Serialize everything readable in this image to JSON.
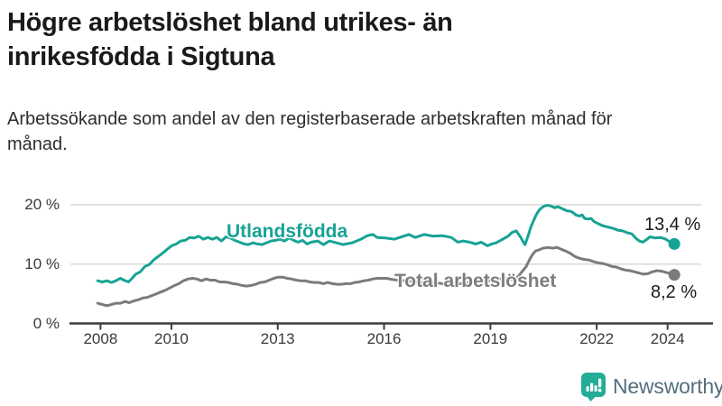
{
  "header": {
    "title": "Högre arbetslöshet bland utrikes- än inrikesfödda i Sigtuna",
    "subtitle": "Arbetssökande som andel av den registerbaserade arbetskraften månad för månad."
  },
  "chart_data": {
    "type": "line",
    "unit": "%",
    "grid": "horizontal-only",
    "legend_position": "inline-labels",
    "xlim": [
      2007.15,
      2024.95
    ],
    "ylim": [
      0,
      20
    ],
    "x_ticks": [
      2008,
      2010,
      2013,
      2016,
      2019,
      2022,
      2024
    ],
    "y_ticks": [
      {
        "value": 0,
        "label": "0 %"
      },
      {
        "value": 10,
        "label": "10 %"
      },
      {
        "value": 20,
        "label": "20 %"
      }
    ],
    "series": [
      {
        "id": "utlandsfodda",
        "name": "Utlandsfödda",
        "color": "#17a394",
        "end_label": "13,4 %",
        "end_value": 13.4,
        "points": [
          [
            2007.92,
            7.2
          ],
          [
            2008.05,
            7.0
          ],
          [
            2008.18,
            7.2
          ],
          [
            2008.31,
            6.9
          ],
          [
            2008.43,
            7.2
          ],
          [
            2008.56,
            7.6
          ],
          [
            2008.66,
            7.3
          ],
          [
            2008.79,
            7.0
          ],
          [
            2008.89,
            7.6
          ],
          [
            2008.99,
            8.3
          ],
          [
            2009.12,
            8.7
          ],
          [
            2009.25,
            9.6
          ],
          [
            2009.37,
            9.9
          ],
          [
            2009.5,
            10.7
          ],
          [
            2009.63,
            11.3
          ],
          [
            2009.76,
            11.9
          ],
          [
            2009.88,
            12.5
          ],
          [
            2010.01,
            13.1
          ],
          [
            2010.14,
            13.4
          ],
          [
            2010.26,
            13.9
          ],
          [
            2010.39,
            14.0
          ],
          [
            2010.52,
            14.5
          ],
          [
            2010.65,
            14.4
          ],
          [
            2010.77,
            14.7
          ],
          [
            2010.9,
            14.2
          ],
          [
            2011.03,
            14.5
          ],
          [
            2011.16,
            14.2
          ],
          [
            2011.28,
            14.5
          ],
          [
            2011.41,
            13.9
          ],
          [
            2011.54,
            14.6
          ],
          [
            2011.66,
            14.4
          ],
          [
            2011.79,
            14.0
          ],
          [
            2011.92,
            13.7
          ],
          [
            2012.05,
            13.4
          ],
          [
            2012.17,
            13.3
          ],
          [
            2012.3,
            13.6
          ],
          [
            2012.43,
            13.4
          ],
          [
            2012.56,
            13.3
          ],
          [
            2012.68,
            13.6
          ],
          [
            2012.81,
            13.9
          ],
          [
            2012.94,
            14.0
          ],
          [
            2013.06,
            14.2
          ],
          [
            2013.19,
            13.9
          ],
          [
            2013.32,
            14.4
          ],
          [
            2013.45,
            14.0
          ],
          [
            2013.57,
            13.7
          ],
          [
            2013.7,
            14.0
          ],
          [
            2013.83,
            13.4
          ],
          [
            2013.95,
            13.7
          ],
          [
            2014.13,
            13.9
          ],
          [
            2014.29,
            13.3
          ],
          [
            2014.46,
            13.9
          ],
          [
            2014.59,
            13.7
          ],
          [
            2014.84,
            13.3
          ],
          [
            2015.1,
            13.6
          ],
          [
            2015.35,
            14.2
          ],
          [
            2015.53,
            14.8
          ],
          [
            2015.68,
            15.0
          ],
          [
            2015.81,
            14.5
          ],
          [
            2016.04,
            14.4
          ],
          [
            2016.29,
            14.2
          ],
          [
            2016.55,
            14.7
          ],
          [
            2016.7,
            15.0
          ],
          [
            2016.88,
            14.5
          ],
          [
            2017.13,
            15.0
          ],
          [
            2017.39,
            14.7
          ],
          [
            2017.64,
            14.8
          ],
          [
            2017.9,
            14.5
          ],
          [
            2018.08,
            13.7
          ],
          [
            2018.23,
            13.9
          ],
          [
            2018.41,
            13.7
          ],
          [
            2018.59,
            13.4
          ],
          [
            2018.74,
            13.7
          ],
          [
            2018.92,
            13.1
          ],
          [
            2019.04,
            13.4
          ],
          [
            2019.17,
            13.6
          ],
          [
            2019.35,
            14.2
          ],
          [
            2019.5,
            14.7
          ],
          [
            2019.6,
            15.3
          ],
          [
            2019.73,
            15.6
          ],
          [
            2019.86,
            14.5
          ],
          [
            2019.93,
            13.7
          ],
          [
            2019.98,
            13.3
          ],
          [
            2020.06,
            14.7
          ],
          [
            2020.14,
            16.2
          ],
          [
            2020.24,
            17.6
          ],
          [
            2020.31,
            18.5
          ],
          [
            2020.39,
            19.2
          ],
          [
            2020.49,
            19.7
          ],
          [
            2020.57,
            19.9
          ],
          [
            2020.65,
            19.9
          ],
          [
            2020.75,
            19.7
          ],
          [
            2020.82,
            19.5
          ],
          [
            2020.9,
            19.7
          ],
          [
            2021.0,
            19.4
          ],
          [
            2021.08,
            19.2
          ],
          [
            2021.16,
            19.0
          ],
          [
            2021.26,
            18.9
          ],
          [
            2021.33,
            18.7
          ],
          [
            2021.41,
            18.3
          ],
          [
            2021.51,
            18.1
          ],
          [
            2021.59,
            18.3
          ],
          [
            2021.66,
            17.7
          ],
          [
            2021.77,
            17.6
          ],
          [
            2021.84,
            17.7
          ],
          [
            2021.92,
            17.2
          ],
          [
            2022.02,
            16.9
          ],
          [
            2022.12,
            16.6
          ],
          [
            2022.22,
            16.4
          ],
          [
            2022.35,
            16.2
          ],
          [
            2022.48,
            16.0
          ],
          [
            2022.61,
            15.7
          ],
          [
            2022.73,
            15.6
          ],
          [
            2022.86,
            15.3
          ],
          [
            2022.99,
            15.1
          ],
          [
            2023.1,
            14.4
          ],
          [
            2023.2,
            13.9
          ],
          [
            2023.3,
            13.7
          ],
          [
            2023.4,
            14.1
          ],
          [
            2023.5,
            14.6
          ],
          [
            2023.65,
            14.4
          ],
          [
            2023.8,
            14.5
          ],
          [
            2023.95,
            14.2
          ],
          [
            2024.05,
            13.8
          ],
          [
            2024.19,
            13.4
          ]
        ]
      },
      {
        "id": "total-arbetsloshet",
        "name": "Total arbetslöshet",
        "color": "#7b7b7b",
        "end_label": "8,2 %",
        "end_value": 8.2,
        "points": [
          [
            2007.92,
            3.4
          ],
          [
            2008.05,
            3.2
          ],
          [
            2008.18,
            3.0
          ],
          [
            2008.31,
            3.2
          ],
          [
            2008.43,
            3.4
          ],
          [
            2008.56,
            3.4
          ],
          [
            2008.69,
            3.7
          ],
          [
            2008.81,
            3.5
          ],
          [
            2008.94,
            3.8
          ],
          [
            2009.07,
            4.0
          ],
          [
            2009.2,
            4.3
          ],
          [
            2009.32,
            4.4
          ],
          [
            2009.45,
            4.7
          ],
          [
            2009.58,
            5.0
          ],
          [
            2009.7,
            5.3
          ],
          [
            2009.83,
            5.6
          ],
          [
            2009.96,
            6.0
          ],
          [
            2010.09,
            6.4
          ],
          [
            2010.21,
            6.7
          ],
          [
            2010.34,
            7.2
          ],
          [
            2010.47,
            7.5
          ],
          [
            2010.6,
            7.6
          ],
          [
            2010.72,
            7.5
          ],
          [
            2010.85,
            7.2
          ],
          [
            2010.98,
            7.5
          ],
          [
            2011.1,
            7.3
          ],
          [
            2011.23,
            7.3
          ],
          [
            2011.36,
            7.0
          ],
          [
            2011.49,
            7.0
          ],
          [
            2011.61,
            6.9
          ],
          [
            2011.74,
            6.7
          ],
          [
            2011.87,
            6.6
          ],
          [
            2011.99,
            6.4
          ],
          [
            2012.12,
            6.3
          ],
          [
            2012.25,
            6.4
          ],
          [
            2012.38,
            6.6
          ],
          [
            2012.5,
            6.9
          ],
          [
            2012.63,
            7.0
          ],
          [
            2012.76,
            7.3
          ],
          [
            2012.89,
            7.6
          ],
          [
            2013.01,
            7.8
          ],
          [
            2013.14,
            7.8
          ],
          [
            2013.27,
            7.6
          ],
          [
            2013.39,
            7.5
          ],
          [
            2013.52,
            7.3
          ],
          [
            2013.65,
            7.2
          ],
          [
            2013.78,
            7.2
          ],
          [
            2013.9,
            7.0
          ],
          [
            2014.03,
            6.9
          ],
          [
            2014.16,
            6.9
          ],
          [
            2014.29,
            6.7
          ],
          [
            2014.41,
            6.9
          ],
          [
            2014.54,
            6.7
          ],
          [
            2014.67,
            6.6
          ],
          [
            2014.79,
            6.6
          ],
          [
            2014.92,
            6.7
          ],
          [
            2015.05,
            6.7
          ],
          [
            2015.18,
            6.9
          ],
          [
            2015.3,
            7.0
          ],
          [
            2015.43,
            7.2
          ],
          [
            2015.56,
            7.3
          ],
          [
            2015.68,
            7.5
          ],
          [
            2015.81,
            7.6
          ],
          [
            2015.94,
            7.6
          ],
          [
            2016.07,
            7.6
          ],
          [
            2016.24,
            7.4
          ],
          [
            2016.37,
            7.3
          ],
          [
            2016.63,
            7.2
          ],
          [
            2016.88,
            7.0
          ],
          [
            2017.13,
            6.9
          ],
          [
            2017.39,
            6.9
          ],
          [
            2017.64,
            6.7
          ],
          [
            2017.9,
            6.6
          ],
          [
            2018.15,
            6.7
          ],
          [
            2018.41,
            6.9
          ],
          [
            2018.66,
            7.0
          ],
          [
            2018.92,
            7.2
          ],
          [
            2019.17,
            7.3
          ],
          [
            2019.3,
            7.5
          ],
          [
            2019.42,
            7.6
          ],
          [
            2019.55,
            7.5
          ],
          [
            2019.68,
            7.3
          ],
          [
            2019.81,
            8.1
          ],
          [
            2019.93,
            9.0
          ],
          [
            2020.01,
            9.6
          ],
          [
            2020.11,
            10.8
          ],
          [
            2020.19,
            11.6
          ],
          [
            2020.27,
            12.2
          ],
          [
            2020.37,
            12.4
          ],
          [
            2020.49,
            12.7
          ],
          [
            2020.62,
            12.8
          ],
          [
            2020.75,
            12.7
          ],
          [
            2020.88,
            12.8
          ],
          [
            2021.0,
            12.5
          ],
          [
            2021.13,
            12.2
          ],
          [
            2021.26,
            11.8
          ],
          [
            2021.38,
            11.3
          ],
          [
            2021.51,
            11.0
          ],
          [
            2021.64,
            10.8
          ],
          [
            2021.77,
            10.7
          ],
          [
            2021.92,
            10.4
          ],
          [
            2022.05,
            10.2
          ],
          [
            2022.17,
            10.1
          ],
          [
            2022.3,
            9.9
          ],
          [
            2022.43,
            9.6
          ],
          [
            2022.56,
            9.5
          ],
          [
            2022.68,
            9.2
          ],
          [
            2022.81,
            9.0
          ],
          [
            2022.94,
            8.9
          ],
          [
            2023.07,
            8.7
          ],
          [
            2023.19,
            8.5
          ],
          [
            2023.32,
            8.3
          ],
          [
            2023.45,
            8.4
          ],
          [
            2023.57,
            8.7
          ],
          [
            2023.7,
            8.9
          ],
          [
            2023.83,
            8.8
          ],
          [
            2023.96,
            8.6
          ],
          [
            2024.1,
            8.4
          ],
          [
            2024.19,
            8.2
          ]
        ]
      }
    ]
  },
  "branding": {
    "logo_text": "Newsworthy",
    "logo_icon": "newsworthy-speech-bubble-bars-icon",
    "logo_icon_color": "#23ac96",
    "logo_text_color": "#546e7e"
  },
  "style": {
    "grid_color": "#d9d9d9",
    "axis_color": "#3d3d3d",
    "tick_label_color": "#3a3a3a",
    "value_label_color": "#1a1a1a"
  }
}
